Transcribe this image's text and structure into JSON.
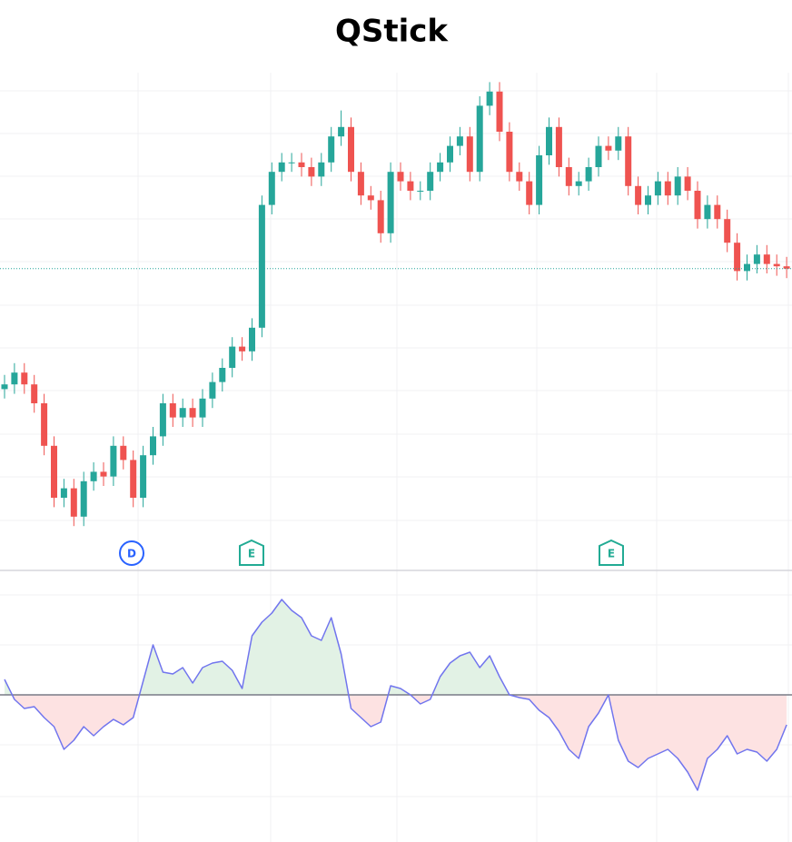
{
  "title": "QStick",
  "event_markers": [
    "D",
    "E",
    "E"
  ],
  "chart_data": [
    {
      "type": "candlestick",
      "up_color": "#26a69a",
      "down_color": "#ef5350",
      "ylim": [
        0,
        100
      ],
      "last_price_line": true,
      "open": [
        33,
        34,
        36.5,
        34,
        30,
        21,
        10,
        12,
        6,
        13.5,
        15.5,
        14.5,
        21,
        18,
        10,
        19,
        23,
        30,
        27,
        29,
        27,
        31,
        34.5,
        37.5,
        42,
        41,
        46,
        72,
        79,
        81,
        81,
        80,
        78,
        81,
        86.5,
        88.5,
        79,
        74,
        73,
        66,
        79,
        77,
        75,
        75,
        79,
        81,
        84.5,
        86.5,
        79,
        93,
        96,
        87.5,
        79,
        77,
        72,
        82.5,
        88.5,
        80,
        76,
        77,
        80,
        84.5,
        83.5,
        86.5,
        76,
        72,
        74,
        77,
        74,
        78,
        75,
        69,
        72,
        69,
        64,
        58,
        59.5,
        61.5,
        59.5,
        59
      ],
      "high": [
        36,
        38.5,
        38.5,
        36,
        32,
        23,
        14,
        14,
        15.5,
        17.5,
        17.5,
        23,
        23,
        20,
        21,
        25,
        32,
        32,
        31,
        31,
        33,
        36.5,
        39.5,
        44,
        44,
        48,
        74,
        81,
        83,
        83,
        83,
        82,
        83,
        88.5,
        92,
        90.5,
        81,
        76,
        75,
        81,
        81,
        79,
        77,
        81,
        83,
        86.5,
        88.5,
        88.5,
        95,
        98,
        98,
        89.5,
        81,
        79,
        84.5,
        90.5,
        90.5,
        82,
        79,
        82,
        86.5,
        86.5,
        88.5,
        88.5,
        78,
        76,
        79,
        79,
        80,
        80,
        77,
        74,
        74,
        71,
        66,
        61.5,
        63.5,
        63.5,
        61.5,
        61
      ],
      "low": [
        31,
        32,
        32,
        28,
        19,
        8,
        8,
        4,
        4,
        11.5,
        12.5,
        12.5,
        16,
        8,
        8,
        17,
        21,
        25,
        25,
        25,
        25,
        29,
        32.5,
        35.5,
        39,
        39,
        44,
        70,
        77,
        79,
        78,
        76,
        76,
        79,
        84.5,
        77,
        72,
        71,
        64,
        64,
        75,
        73,
        73,
        73,
        77,
        79,
        82.5,
        77,
        77,
        91,
        85.5,
        77,
        75,
        70,
        70,
        80.5,
        78,
        74,
        74,
        75,
        78,
        81.5,
        81.5,
        74,
        70,
        70,
        72,
        72,
        72,
        73,
        67,
        67,
        67,
        62,
        56,
        56,
        57.5,
        57.5,
        57,
        56.5
      ],
      "close": [
        34,
        36.5,
        34,
        30,
        21,
        10,
        12,
        6,
        13.5,
        15.5,
        14.5,
        21,
        18,
        10,
        19,
        23,
        30,
        27,
        29,
        27,
        31,
        34.5,
        37.5,
        42,
        41,
        46,
        72,
        79,
        81,
        81,
        80,
        78,
        81,
        86.5,
        88.5,
        79,
        74,
        73,
        66,
        79,
        77,
        75,
        75,
        79,
        81,
        84.5,
        86.5,
        79,
        93,
        96,
        87.5,
        79,
        77,
        72,
        82.5,
        88.5,
        80,
        76,
        77,
        80,
        84.5,
        83.5,
        86.5,
        76,
        72,
        74,
        77,
        74,
        78,
        75,
        69,
        72,
        69,
        64,
        58,
        59.5,
        61.5,
        59.5,
        59,
        58.5
      ]
    },
    {
      "type": "line",
      "color": "#7175ee",
      "positive_fill": "#e2f2e5",
      "negative_fill": "#fde2e2",
      "ylim": [
        -16,
        13
      ],
      "values": [
        1.7,
        -0.5,
        -1.5,
        -1.3,
        -2.5,
        -3.5,
        -6,
        -5,
        -3.5,
        -4.5,
        -3.5,
        -2.7,
        -3.3,
        -2.5,
        1.5,
        5.5,
        2.5,
        2.3,
        3,
        1.3,
        3,
        3.5,
        3.7,
        2.7,
        0.7,
        6.5,
        8,
        9,
        10.5,
        9.3,
        8.5,
        6.5,
        6,
        8.5,
        4.5,
        -1.5,
        -2.5,
        -3.5,
        -3,
        1,
        0.7,
        0,
        -1,
        -0.5,
        2,
        3.5,
        4.3,
        4.7,
        3,
        4.3,
        2,
        0,
        -0.3,
        -0.5,
        -1.7,
        -2.5,
        -4,
        -6,
        -7,
        -3.5,
        -2,
        0,
        -5,
        -7.3,
        -8,
        -7,
        -6.5,
        -6,
        -7,
        -8.5,
        -10.5,
        -7,
        -6,
        -4.5,
        -6.5,
        -6,
        -6.3,
        -7.3,
        -6,
        -3.3
      ]
    }
  ]
}
